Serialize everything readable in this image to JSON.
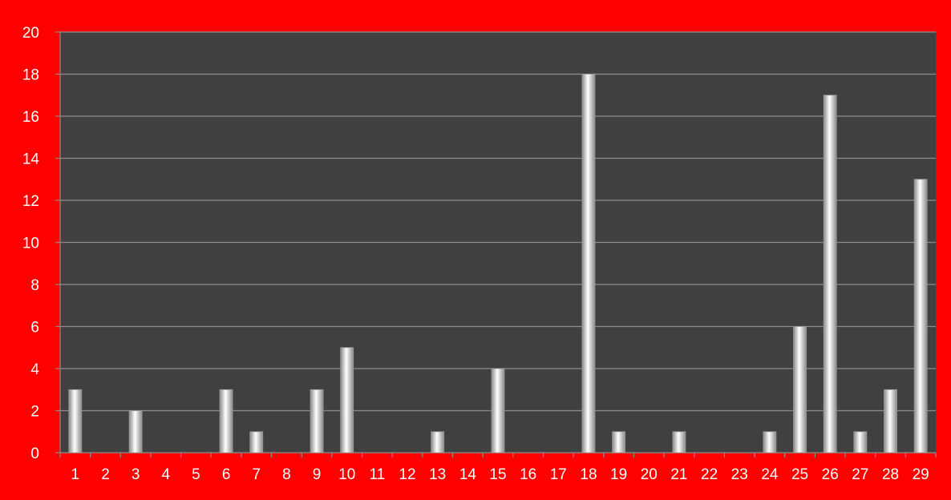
{
  "chart_data": {
    "type": "bar",
    "title": "",
    "xlabel": "",
    "ylabel": "",
    "categories": [
      "1",
      "2",
      "3",
      "4",
      "5",
      "6",
      "7",
      "8",
      "9",
      "10",
      "11",
      "12",
      "13",
      "14",
      "15",
      "16",
      "17",
      "18",
      "19",
      "20",
      "21",
      "22",
      "23",
      "24",
      "25",
      "26",
      "27",
      "28",
      "29"
    ],
    "values": [
      3,
      0,
      2,
      0,
      0,
      3,
      1,
      0,
      3,
      5,
      0,
      0,
      1,
      0,
      4,
      0,
      0,
      18,
      1,
      0,
      1,
      0,
      0,
      1,
      6,
      17,
      1,
      3,
      13
    ],
    "ylim": [
      0,
      20
    ],
    "yticks": [
      "0",
      "2",
      "4",
      "6",
      "8",
      "10",
      "12",
      "14",
      "16",
      "18",
      "20"
    ],
    "grid": true,
    "legend": "none",
    "colors": {
      "frame": "#ff0000",
      "plot_bg": "#404040",
      "grid": "#8c8c8c",
      "bar_edge": "#9a9a9a",
      "bar_light": "#ffffff",
      "bar_dark": "#8a8a8a",
      "text": "#ffffff"
    }
  }
}
